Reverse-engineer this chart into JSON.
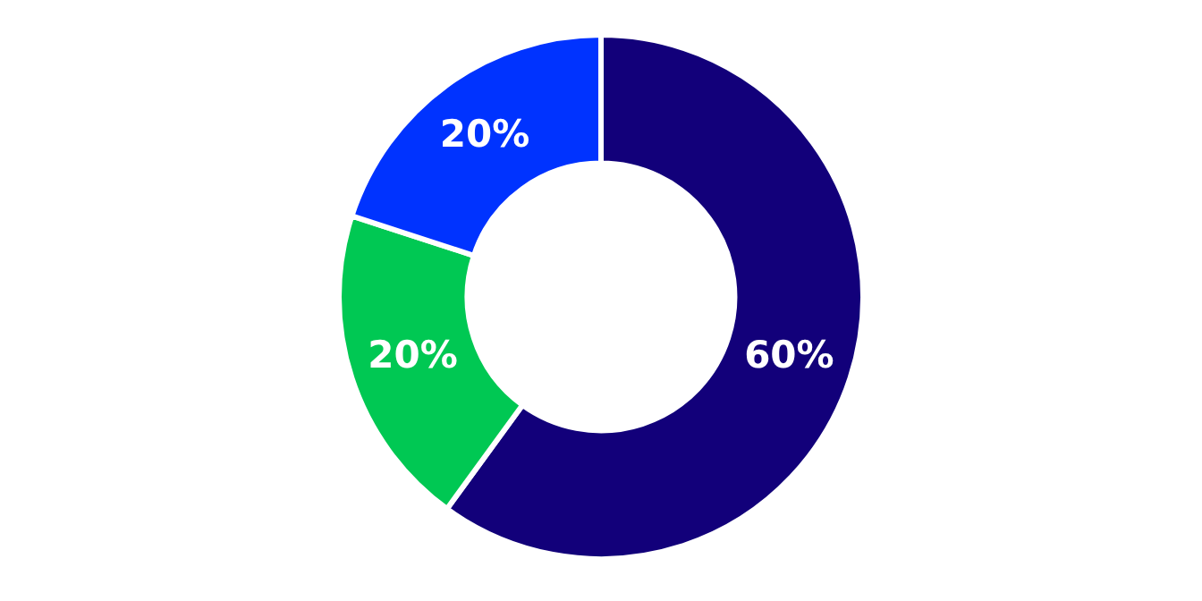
{
  "chart_data": {
    "type": "donut",
    "categories": [
      null,
      null,
      null
    ],
    "values": [
      60,
      20,
      20
    ],
    "colors": [
      "#12007a",
      "#00c853",
      "#0033ff"
    ],
    "value_labels": [
      "60%",
      "20%",
      "20%"
    ],
    "legend": false
  }
}
